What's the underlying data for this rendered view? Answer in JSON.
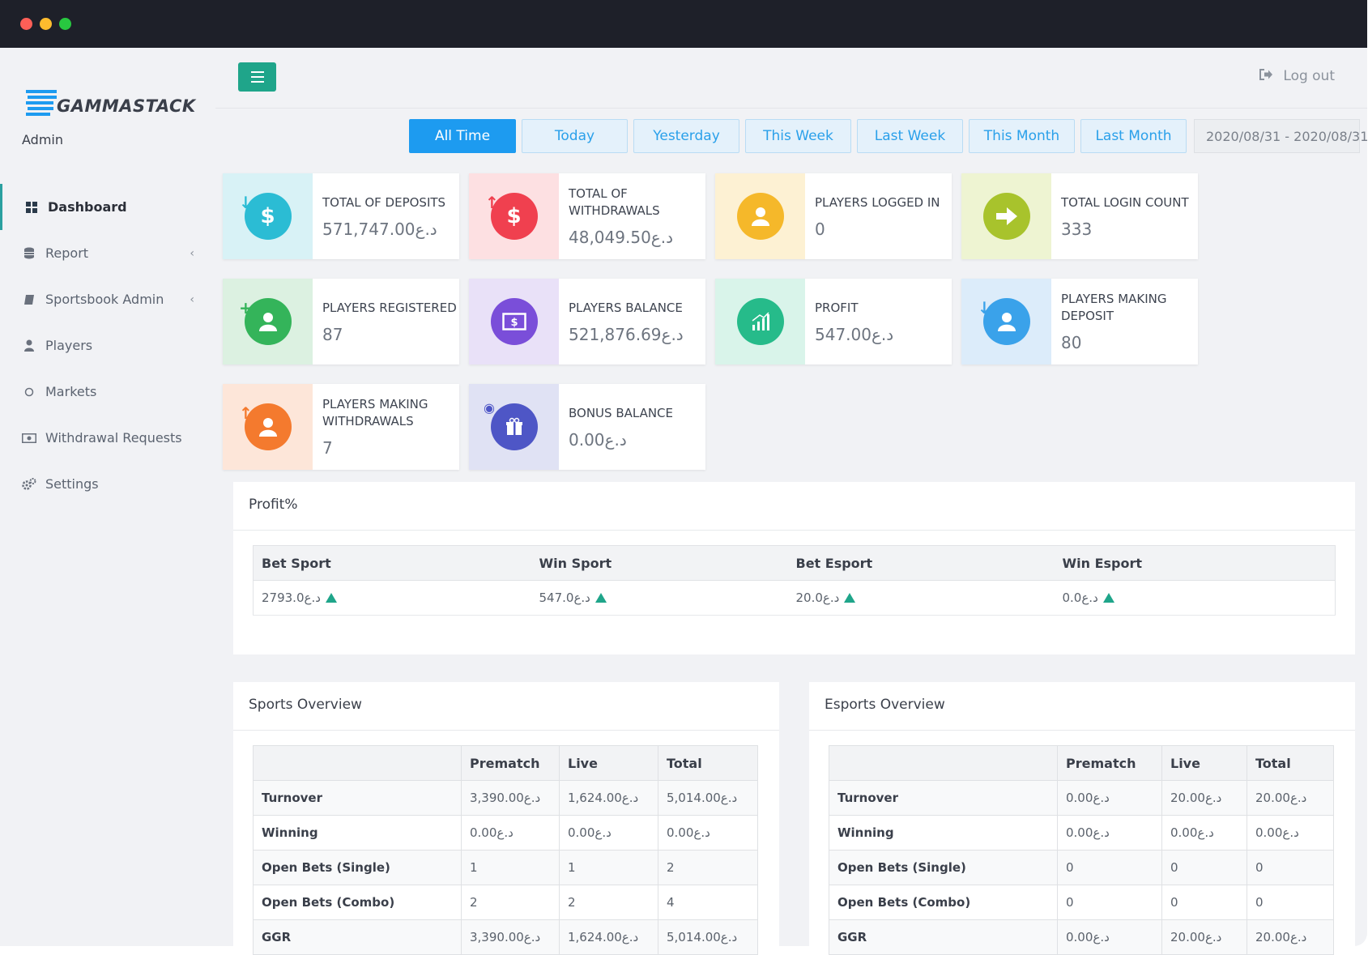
{
  "app": {
    "brand": "GAMMASTACK",
    "role": "Admin"
  },
  "sidebar": {
    "items": [
      {
        "label": "Dashboard",
        "icon": "grid-icon"
      },
      {
        "label": "Report",
        "icon": "database-icon"
      },
      {
        "label": "Sportsbook Admin",
        "icon": "book-icon"
      },
      {
        "label": "Players",
        "icon": "user-icon"
      },
      {
        "label": "Markets",
        "icon": "circle-icon"
      },
      {
        "label": "Withdrawal Requests",
        "icon": "money-icon"
      },
      {
        "label": "Settings",
        "icon": "gears-icon"
      }
    ]
  },
  "header": {
    "logout_label": "Log out"
  },
  "filters": {
    "tabs": [
      "All Time",
      "Today",
      "Yesterday",
      "This Week",
      "Last Week",
      "This Month",
      "Last Month"
    ],
    "active_tab": "All Time",
    "date_range": "2020/08/31 - 2020/08/31"
  },
  "stats": [
    {
      "label": "TOTAL OF DEPOSITS",
      "value": "571,747.00د.ع",
      "color": "#2bbcd4",
      "bg": "#d8f2f6",
      "icon": "dollar-icon"
    },
    {
      "label": "TOTAL OF WITHDRAWALS",
      "value": "48,049.50د.ع",
      "color": "#f0404f",
      "bg": "#fde0e2",
      "icon": "dollar-icon"
    },
    {
      "label": "PLAYERS LOGGED IN",
      "value": "0",
      "color": "#f5b82a",
      "bg": "#fdf1d3",
      "icon": "user-icon"
    },
    {
      "label": "TOTAL LOGIN COUNT",
      "value": "333",
      "color": "#a8c32c",
      "bg": "#eef4d2",
      "icon": "arrow-right-icon"
    },
    {
      "label": "PLAYERS REGISTERED",
      "value": "87",
      "color": "#34b45a",
      "bg": "#dcf1e1",
      "icon": "user-plus-icon"
    },
    {
      "label": "PLAYERS BALANCE",
      "value": "521,876.69د.ع",
      "color": "#7a4ed9",
      "bg": "#e9e1f8",
      "icon": "money-icon"
    },
    {
      "label": "PROFIT",
      "value": "547.00د.ع",
      "color": "#26bb8a",
      "bg": "#d9f4ea",
      "icon": "chart-icon"
    },
    {
      "label": "PLAYERS MAKING DEPOSIT",
      "value": "80",
      "color": "#3aa2ea",
      "bg": "#dcecfa",
      "icon": "user-icon"
    },
    {
      "label": "PLAYERS MAKING WITHDRAWALS",
      "value": "7",
      "color": "#f47a2e",
      "bg": "#fde6d9",
      "icon": "user-icon"
    },
    {
      "label": "BONUS BALANCE",
      "value": "0.00د.ع",
      "color": "#4e56c6",
      "bg": "#e0e2f4",
      "icon": "gift-icon"
    }
  ],
  "profit": {
    "title": "Profit%",
    "headers": [
      "Bet Sport",
      "Win Sport",
      "Bet Esport",
      "Win Esport"
    ],
    "values": [
      "2793.0د.ع",
      "547.0د.ع",
      "20.0د.ع",
      "0.0د.ع"
    ]
  },
  "sports_overview": {
    "title": "Sports Overview",
    "headers": [
      "",
      "Prematch",
      "Live",
      "Total"
    ],
    "rows": [
      [
        "Turnover",
        "3,390.00د.ع",
        "1,624.00د.ع",
        "5,014.00د.ع"
      ],
      [
        "Winning",
        "0.00د.ع",
        "0.00د.ع",
        "0.00د.ع"
      ],
      [
        "Open Bets (Single)",
        "1",
        "1",
        "2"
      ],
      [
        "Open Bets (Combo)",
        "2",
        "2",
        "4"
      ],
      [
        "GGR",
        "3,390.00د.ع",
        "1,624.00د.ع",
        "5,014.00د.ع"
      ]
    ]
  },
  "esports_overview": {
    "title": "Esports Overview",
    "headers": [
      "",
      "Prematch",
      "Live",
      "Total"
    ],
    "rows": [
      [
        "Turnover",
        "0.00د.ع",
        "20.00د.ع",
        "20.00د.ع"
      ],
      [
        "Winning",
        "0.00د.ع",
        "0.00د.ع",
        "0.00د.ع"
      ],
      [
        "Open Bets (Single)",
        "0",
        "0",
        "0"
      ],
      [
        "Open Bets (Combo)",
        "0",
        "0",
        "0"
      ],
      [
        "GGR",
        "0.00د.ع",
        "20.00د.ع",
        "20.00د.ع"
      ]
    ]
  }
}
